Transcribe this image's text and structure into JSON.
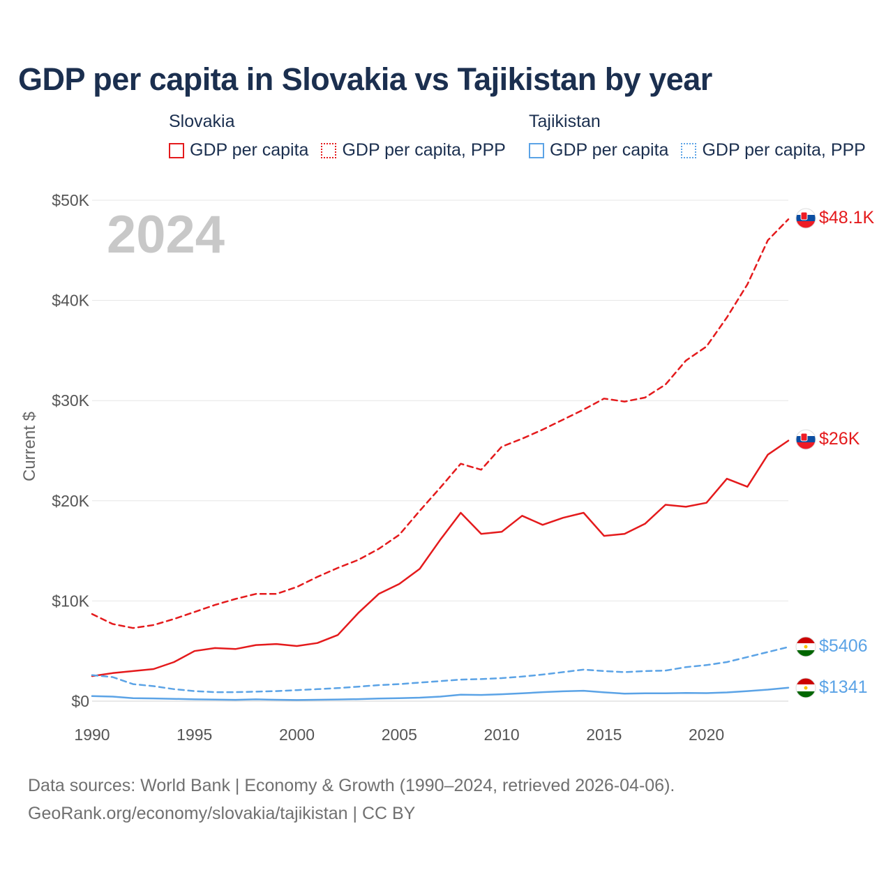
{
  "title": "GDP per capita in Slovakia vs Tajikistan by year",
  "legend": {
    "groups": [
      {
        "country": "Slovakia",
        "items": [
          "GDP per capita",
          "GDP per capita, PPP"
        ]
      },
      {
        "country": "Tajikistan",
        "items": [
          "GDP per capita",
          "GDP per capita, PPP"
        ]
      }
    ]
  },
  "colors": {
    "slovakia": "#e41a1c",
    "tajikistan": "#5ba3e6",
    "grid": "#e6e6e6",
    "title": "#1b2f4f"
  },
  "footer": {
    "line1": "Data sources: World Bank | Economy & Growth (1990–2024, retrieved 2026-04-06).",
    "line2": "GeoRank.org/economy/slovakia/tajikistan | CC BY"
  },
  "chart_data": {
    "type": "line",
    "ylabel": "Current $",
    "year_label": "2024",
    "ylim": [
      0,
      50000
    ],
    "xlim": [
      1990,
      2024
    ],
    "y_ticks": [
      {
        "value": 0,
        "label": "$0"
      },
      {
        "value": 10000,
        "label": "$10K"
      },
      {
        "value": 20000,
        "label": "$20K"
      },
      {
        "value": 30000,
        "label": "$30K"
      },
      {
        "value": 40000,
        "label": "$40K"
      },
      {
        "value": 50000,
        "label": "$50K"
      }
    ],
    "x_ticks": [
      {
        "value": 1990,
        "label": "1990"
      },
      {
        "value": 1995,
        "label": "1995"
      },
      {
        "value": 2000,
        "label": "2000"
      },
      {
        "value": 2005,
        "label": "2005"
      },
      {
        "value": 2010,
        "label": "2010"
      },
      {
        "value": 2015,
        "label": "2015"
      },
      {
        "value": 2020,
        "label": "2020"
      }
    ],
    "x": [
      1990,
      1991,
      1992,
      1993,
      1994,
      1995,
      1996,
      1997,
      1998,
      1999,
      2000,
      2001,
      2002,
      2003,
      2004,
      2005,
      2006,
      2007,
      2008,
      2009,
      2010,
      2011,
      2012,
      2013,
      2014,
      2015,
      2016,
      2017,
      2018,
      2019,
      2020,
      2021,
      2022,
      2023,
      2024
    ],
    "series": [
      {
        "name": "Slovakia GDP per capita, PPP",
        "country": "slovakia",
        "dashed": true,
        "end_label": "$48.1K",
        "values": [
          8700,
          7700,
          7300,
          7600,
          8200,
          8900,
          9600,
          10200,
          10700,
          10700,
          11400,
          12400,
          13300,
          14100,
          15200,
          16600,
          19000,
          21300,
          23700,
          23100,
          25400,
          26200,
          27100,
          28100,
          29100,
          30200,
          29900,
          30300,
          31600,
          34000,
          35400,
          38300,
          41600,
          46000,
          48100
        ]
      },
      {
        "name": "Slovakia GDP per capita",
        "country": "slovakia",
        "dashed": false,
        "end_label": "$26K",
        "values": [
          2500,
          2800,
          3000,
          3200,
          3900,
          5000,
          5300,
          5200,
          5600,
          5700,
          5500,
          5800,
          6600,
          8800,
          10700,
          11700,
          13200,
          16100,
          18800,
          16700,
          16900,
          18500,
          17600,
          18300,
          18800,
          16500,
          16700,
          17700,
          19600,
          19400,
          19800,
          22200,
          21400,
          24600,
          26000
        ]
      },
      {
        "name": "Tajikistan GDP per capita, PPP",
        "country": "tajikistan",
        "dashed": true,
        "end_label": "$5406",
        "values": [
          2600,
          2400,
          1700,
          1500,
          1200,
          1000,
          900,
          900,
          950,
          1000,
          1100,
          1200,
          1300,
          1450,
          1600,
          1700,
          1850,
          2000,
          2150,
          2200,
          2300,
          2450,
          2650,
          2900,
          3150,
          3000,
          2900,
          3000,
          3050,
          3400,
          3600,
          3900,
          4400,
          4900,
          5406
        ]
      },
      {
        "name": "Tajikistan GDP per capita",
        "country": "tajikistan",
        "dashed": false,
        "end_label": "$1341",
        "values": [
          500,
          450,
          300,
          270,
          230,
          180,
          150,
          130,
          180,
          140,
          110,
          140,
          170,
          200,
          260,
          300,
          350,
          450,
          650,
          620,
          690,
          780,
          900,
          980,
          1040,
          880,
          750,
          780,
          790,
          820,
          800,
          870,
          1000,
          1150,
          1341
        ]
      }
    ]
  }
}
